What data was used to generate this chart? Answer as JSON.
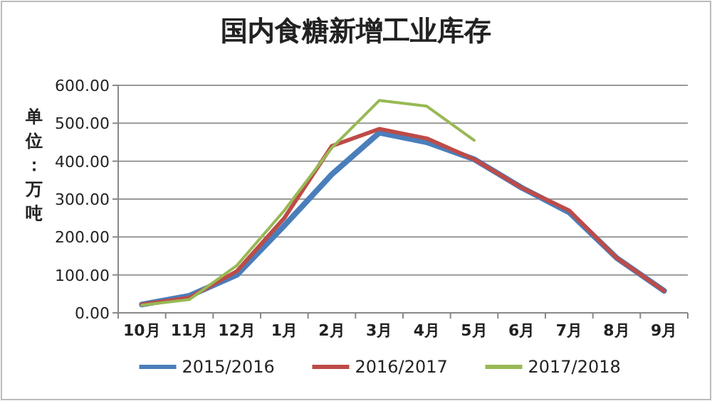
{
  "chart_data": {
    "type": "line",
    "title": "国内食糖新增工业库存",
    "ylabel": "单位：万吨",
    "categories": [
      "10月",
      "11月",
      "12月",
      "1月",
      "2月",
      "3月",
      "4月",
      "5月",
      "6月",
      "7月",
      "8月",
      "9月"
    ],
    "ylim": [
      0,
      600
    ],
    "yticks": [
      {
        "value": 0,
        "label": "0.00"
      },
      {
        "value": 100,
        "label": "100.00"
      },
      {
        "value": 200,
        "label": "200.00"
      },
      {
        "value": 300,
        "label": "300.00"
      },
      {
        "value": 400,
        "label": "400.00"
      },
      {
        "value": 500,
        "label": "500.00"
      },
      {
        "value": 600,
        "label": "600.00"
      }
    ],
    "grid": "y",
    "legend": "bottom",
    "marker": "none",
    "line_style": "solid",
    "series": [
      {
        "name": "2015/2016",
        "color": "#4a7ebb",
        "values": [
          22,
          45,
          100,
          230,
          365,
          475,
          450,
          405,
          330,
          265,
          145,
          58
        ]
      },
      {
        "name": "2016/2017",
        "color": "#be4b48",
        "values": [
          22,
          40,
          110,
          250,
          440,
          485,
          460,
          405,
          330,
          270,
          145,
          58
        ]
      },
      {
        "name": "2017/2018",
        "color": "#98b954",
        "values": [
          20,
          35,
          125,
          270,
          435,
          560,
          545,
          455,
          null,
          null,
          null,
          null
        ]
      }
    ]
  }
}
